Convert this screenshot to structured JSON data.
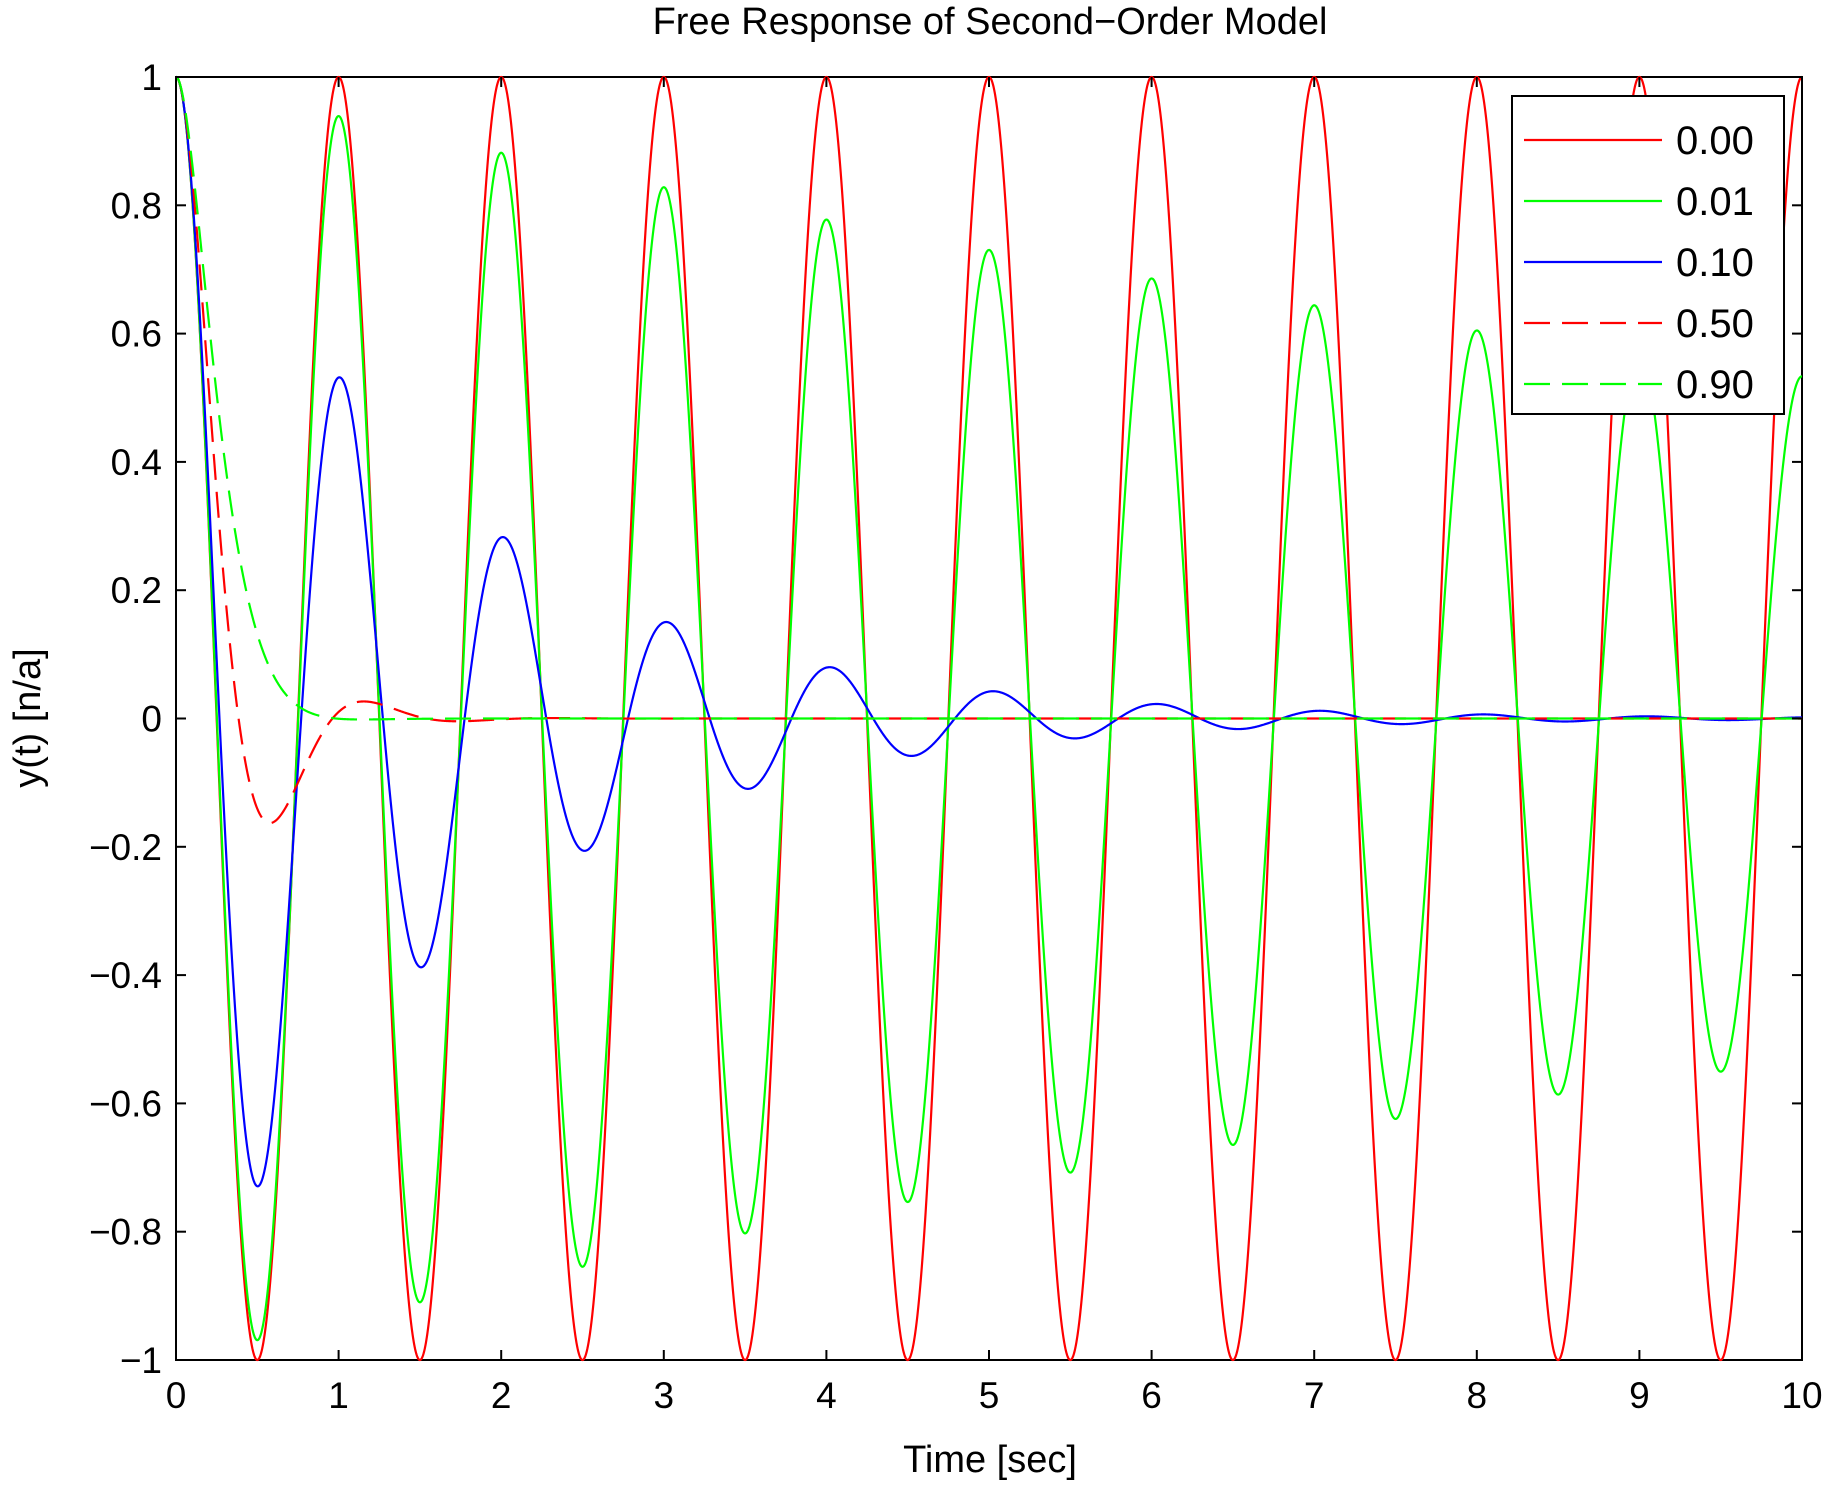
{
  "chart_data": {
    "type": "line",
    "title": "Free Response of Second−Order Model",
    "xlabel": "Time [sec]",
    "ylabel": "y(t) [n/a]",
    "xlim": [
      0,
      10
    ],
    "ylim": [
      -1,
      1
    ],
    "x_ticks": [
      0,
      1,
      2,
      3,
      4,
      5,
      6,
      7,
      8,
      9,
      10
    ],
    "y_ticks": [
      -1,
      -0.8,
      -0.6,
      -0.4,
      -0.2,
      0,
      0.2,
      0.4,
      0.6,
      0.8,
      1
    ],
    "x_tick_labels": [
      "0",
      "1",
      "2",
      "3",
      "4",
      "5",
      "6",
      "7",
      "8",
      "9",
      "10"
    ],
    "y_tick_labels": [
      "−1",
      "−0.8",
      "−0.6",
      "−0.4",
      "−0.2",
      "0",
      "0.2",
      "0.4",
      "0.6",
      "0.8",
      "1"
    ],
    "grid": false,
    "legend_position": "top-right",
    "natural_frequency_hz": 1,
    "initial_value": 1,
    "series": [
      {
        "name": "0.00",
        "damping_ratio": 0.0,
        "color": "#ff0000",
        "style": "solid"
      },
      {
        "name": "0.01",
        "damping_ratio": 0.01,
        "color": "#00ff00",
        "style": "solid"
      },
      {
        "name": "0.10",
        "damping_ratio": 0.1,
        "color": "#0000ff",
        "style": "solid"
      },
      {
        "name": "0.50",
        "damping_ratio": 0.5,
        "color": "#ff0000",
        "style": "dashed"
      },
      {
        "name": "0.90",
        "damping_ratio": 0.9,
        "color": "#00ff00",
        "style": "dashed"
      }
    ]
  }
}
